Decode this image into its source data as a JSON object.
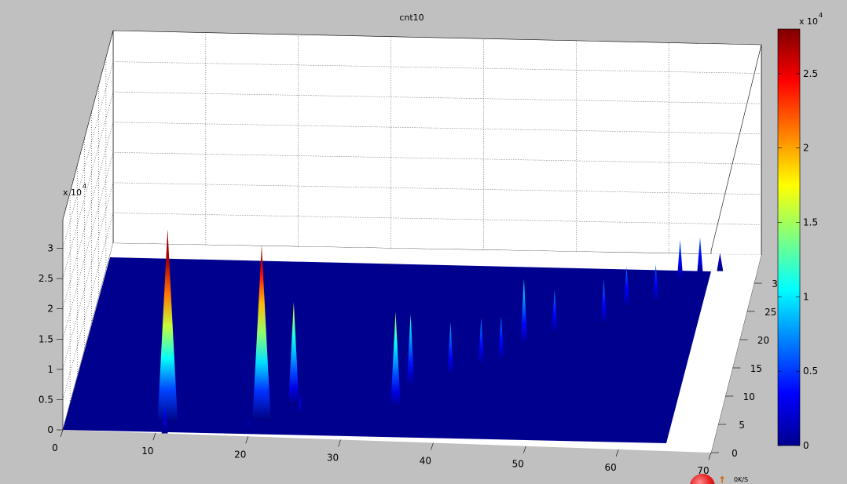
{
  "chart_data": {
    "type": "surface",
    "title": "cnt10",
    "x": {
      "ticks": [
        0,
        10,
        20,
        30,
        40,
        50,
        60,
        70
      ],
      "range": [
        0,
        70
      ]
    },
    "y": {
      "ticks": [
        0,
        5,
        10,
        15,
        20,
        25,
        30
      ],
      "range": [
        0,
        35
      ]
    },
    "z": {
      "ticks": [
        "0",
        "0.5",
        "1",
        "1.5",
        "2",
        "2.5",
        "3"
      ],
      "exponent": "x 10",
      "exponent_power": "4",
      "range": [
        0,
        35000
      ]
    },
    "grid": true,
    "colormap": "jet",
    "colorbar": {
      "placement": "right",
      "exponent": "x 10",
      "exponent_power": "4",
      "ticks": [
        "0",
        "0.5",
        "1",
        "1.5",
        "2",
        "2.5"
      ],
      "range": [
        0,
        28000
      ]
    },
    "peaks": [
      {
        "x": 11,
        "y": 2,
        "z": 32000
      },
      {
        "x": 21,
        "y": 3,
        "z": 29000
      },
      {
        "x": 24,
        "y": 6,
        "z": 17000
      },
      {
        "x": 35,
        "y": 6,
        "z": 16000
      },
      {
        "x": 36,
        "y": 10,
        "z": 12000
      },
      {
        "x": 40,
        "y": 12,
        "z": 9000
      },
      {
        "x": 43,
        "y": 14,
        "z": 8000
      },
      {
        "x": 45,
        "y": 15,
        "z": 7500
      },
      {
        "x": 47,
        "y": 18,
        "z": 11000
      },
      {
        "x": 50,
        "y": 20,
        "z": 7500
      },
      {
        "x": 55,
        "y": 22,
        "z": 7500
      },
      {
        "x": 57,
        "y": 25,
        "z": 7000
      },
      {
        "x": 60,
        "y": 26,
        "z": 6500
      },
      {
        "x": 62,
        "y": 30,
        "z": 7000
      },
      {
        "x": 64,
        "y": 31,
        "z": 6500
      },
      {
        "x": 66,
        "y": 32,
        "z": 3000
      },
      {
        "x": 11,
        "y": 0,
        "z": 5000
      },
      {
        "x": 25,
        "y": 4,
        "z": 3500
      },
      {
        "x": 20,
        "y": 1,
        "z": 2000
      }
    ]
  },
  "overlay": {
    "speed_text": "0K/S"
  }
}
